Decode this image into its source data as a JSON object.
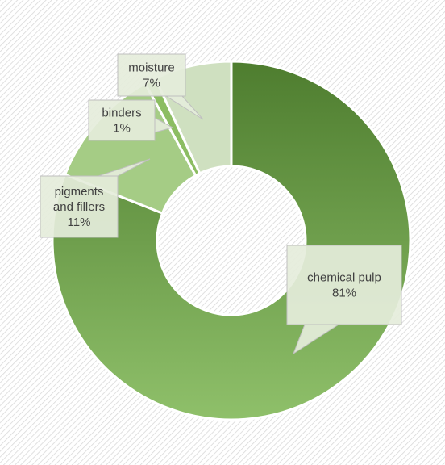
{
  "colors": {
    "background": "#ffffff",
    "hatch_line": "#d9d9d9",
    "callout_fill": "#e5eddb",
    "callout_stroke": "#bfbfbf",
    "text": "#404040"
  },
  "chart_data": {
    "type": "doughnut",
    "title": "",
    "legend": "none",
    "categories": [
      "chemical pulp",
      "pigments and fillers",
      "binders",
      "moisture"
    ],
    "values": [
      81,
      11,
      1,
      7
    ],
    "units": "%",
    "slices": [
      {
        "label": "chemical pulp",
        "value": 81,
        "value_label": "81%",
        "label_lines": [
          "chemical pulp",
          "81%"
        ],
        "color_start": "#4e7d2f",
        "color_end": "#8fc06a"
      },
      {
        "label": "pigments and fillers",
        "value": 11,
        "value_label": "11%",
        "label_lines": [
          "pigments",
          "and fillers",
          "11%"
        ],
        "color_start": "#a5cc85",
        "color_end": "#a5cc85"
      },
      {
        "label": "binders",
        "value": 1,
        "value_label": "1%",
        "label_lines": [
          "binders",
          "1%"
        ],
        "color_start": "#8cbd62",
        "color_end": "#8cbd62"
      },
      {
        "label": "moisture",
        "value": 7,
        "value_label": "7%",
        "label_lines": [
          "moisture",
          "7%"
        ],
        "color_start": "#cfe0c0",
        "color_end": "#cfe0c0"
      }
    ]
  }
}
